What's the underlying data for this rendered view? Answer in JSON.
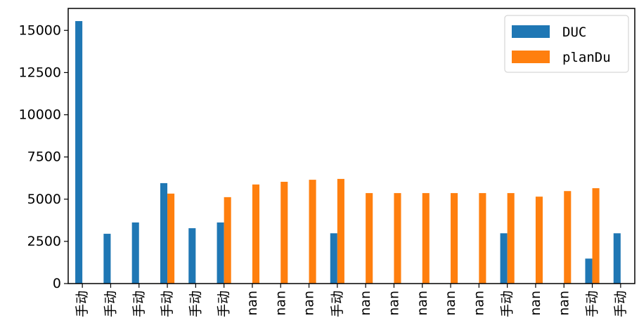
{
  "chart_data": {
    "type": "bar",
    "categories": [
      "手动",
      "手动",
      "手动",
      "手动",
      "手动",
      "手动",
      "nan",
      "nan",
      "nan",
      "手动",
      "nan",
      "nan",
      "nan",
      "nan",
      "nan",
      "手动",
      "nan",
      "nan",
      "手动",
      "手动"
    ],
    "series": [
      {
        "name": "DUC",
        "color": "#1f77b4",
        "values": [
          15550,
          2950,
          3620,
          5950,
          3280,
          3620,
          null,
          null,
          null,
          2980,
          null,
          null,
          null,
          null,
          null,
          2980,
          null,
          null,
          1480,
          2980
        ]
      },
      {
        "name": "planDu",
        "color": "#ff7f0e",
        "values": [
          null,
          null,
          null,
          5330,
          null,
          5120,
          5870,
          6030,
          6150,
          6200,
          5360,
          5360,
          5360,
          5360,
          5360,
          5360,
          5150,
          5480,
          5650,
          null
        ]
      }
    ],
    "ylim": [
      0,
      16300
    ],
    "yticks": [
      0,
      2500,
      5000,
      7500,
      10000,
      12500,
      15000
    ],
    "xlabel": "",
    "ylabel": "",
    "title": "",
    "grid": false,
    "legend_position": "top-right"
  }
}
